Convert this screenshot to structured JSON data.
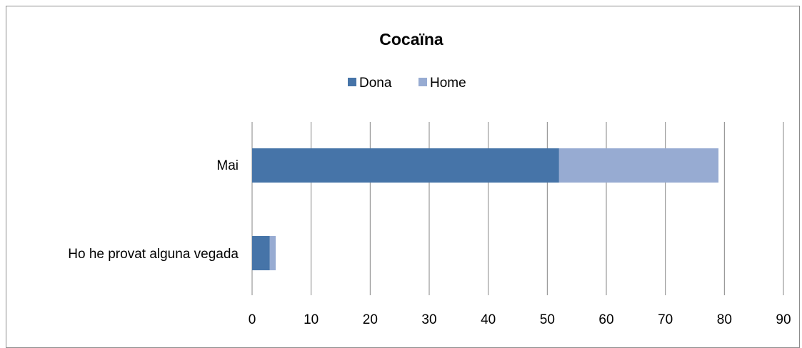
{
  "chart_data": {
    "type": "bar",
    "orientation": "horizontal",
    "stacked": true,
    "title": "Cocaïna",
    "categories": [
      "Mai",
      "Ho he provat alguna vegada"
    ],
    "series": [
      {
        "name": "Dona",
        "values": [
          52,
          3
        ],
        "color": "#4674A8"
      },
      {
        "name": "Home",
        "values": [
          27,
          1
        ],
        "color": "#97ABD2"
      }
    ],
    "xlim": [
      0,
      90
    ],
    "xticks": [
      "0",
      "10",
      "20",
      "30",
      "40",
      "50",
      "60",
      "70",
      "80",
      "90"
    ],
    "grid": "vertical",
    "legend": "top"
  }
}
